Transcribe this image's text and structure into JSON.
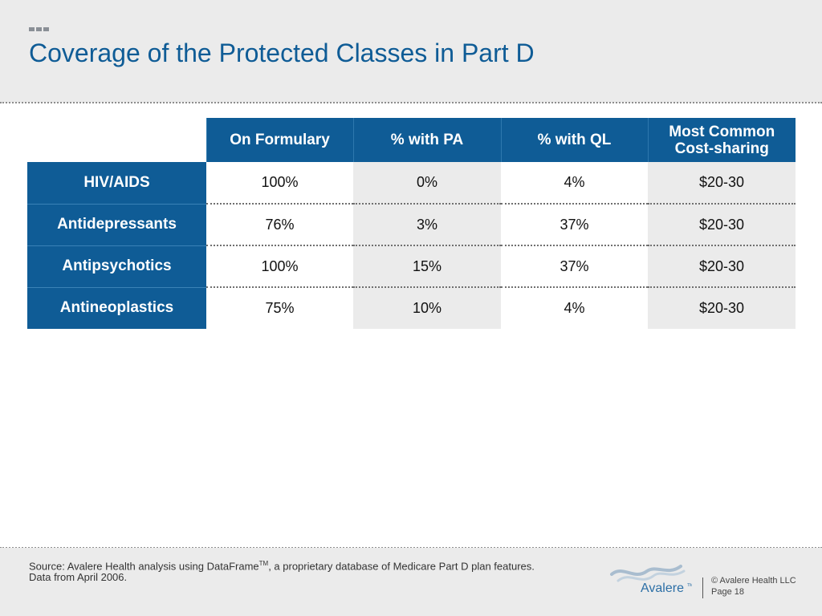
{
  "title": "Coverage of the Protected Classes in Part D",
  "table": {
    "columns": [
      "On Formulary",
      "% with PA",
      "% with QL",
      "Most Common Cost-sharing"
    ],
    "rows": [
      {
        "label": "HIV/AIDS",
        "values": [
          "100%",
          "0%",
          "4%",
          "$20-30"
        ]
      },
      {
        "label": "Antidepressants",
        "values": [
          "76%",
          "3%",
          "37%",
          "$20-30"
        ]
      },
      {
        "label": "Antipsychotics",
        "values": [
          "100%",
          "15%",
          "37%",
          "$20-30"
        ]
      },
      {
        "label": "Antineoplastics",
        "values": [
          "75%",
          "10%",
          "4%",
          "$20-30"
        ]
      }
    ]
  },
  "footer": {
    "source_prefix": "Source:  Avalere Health analysis using DataFrame",
    "source_tm": "TM",
    "source_suffix": ", a proprietary database of Medicare Part D plan features. Data from April 2006.",
    "copyright": "© Avalere Health LLC",
    "page": "Page 18",
    "logo_text": "Avalere",
    "logo_tm": "TM"
  },
  "colors": {
    "brand_blue": "#0f5c96",
    "band_gray": "#ebebeb"
  },
  "icons": {
    "logo": "avalere-wave-logo"
  }
}
